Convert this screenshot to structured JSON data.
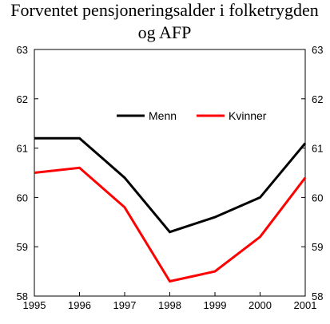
{
  "chart_data": {
    "type": "line",
    "title_lines": [
      "Forventet pensjoneringsalder i folketrygden",
      "og AFP"
    ],
    "xlabel": "",
    "ylabel": "",
    "x": [
      1995,
      1996,
      1997,
      1998,
      1999,
      2000,
      2001
    ],
    "x_tick_labels": [
      "1995",
      "1996",
      "1997",
      "1998",
      "1999",
      "2000",
      "2001"
    ],
    "ylim": [
      58,
      63
    ],
    "y_ticks": [
      58,
      59,
      60,
      61,
      62,
      63
    ],
    "y_tick_labels": [
      "58",
      "59",
      "60",
      "61",
      "62",
      "63"
    ],
    "secondary_y_axis": true,
    "grid": false,
    "legend_position": "top-center",
    "series": [
      {
        "name": "Menn",
        "color": "#000000",
        "values": [
          61.2,
          61.2,
          60.4,
          59.3,
          59.6,
          60.0,
          61.1
        ]
      },
      {
        "name": "Kvinner",
        "color": "#ff0000",
        "values": [
          60.5,
          60.6,
          59.8,
          58.3,
          58.5,
          59.2,
          60.4
        ]
      }
    ]
  }
}
